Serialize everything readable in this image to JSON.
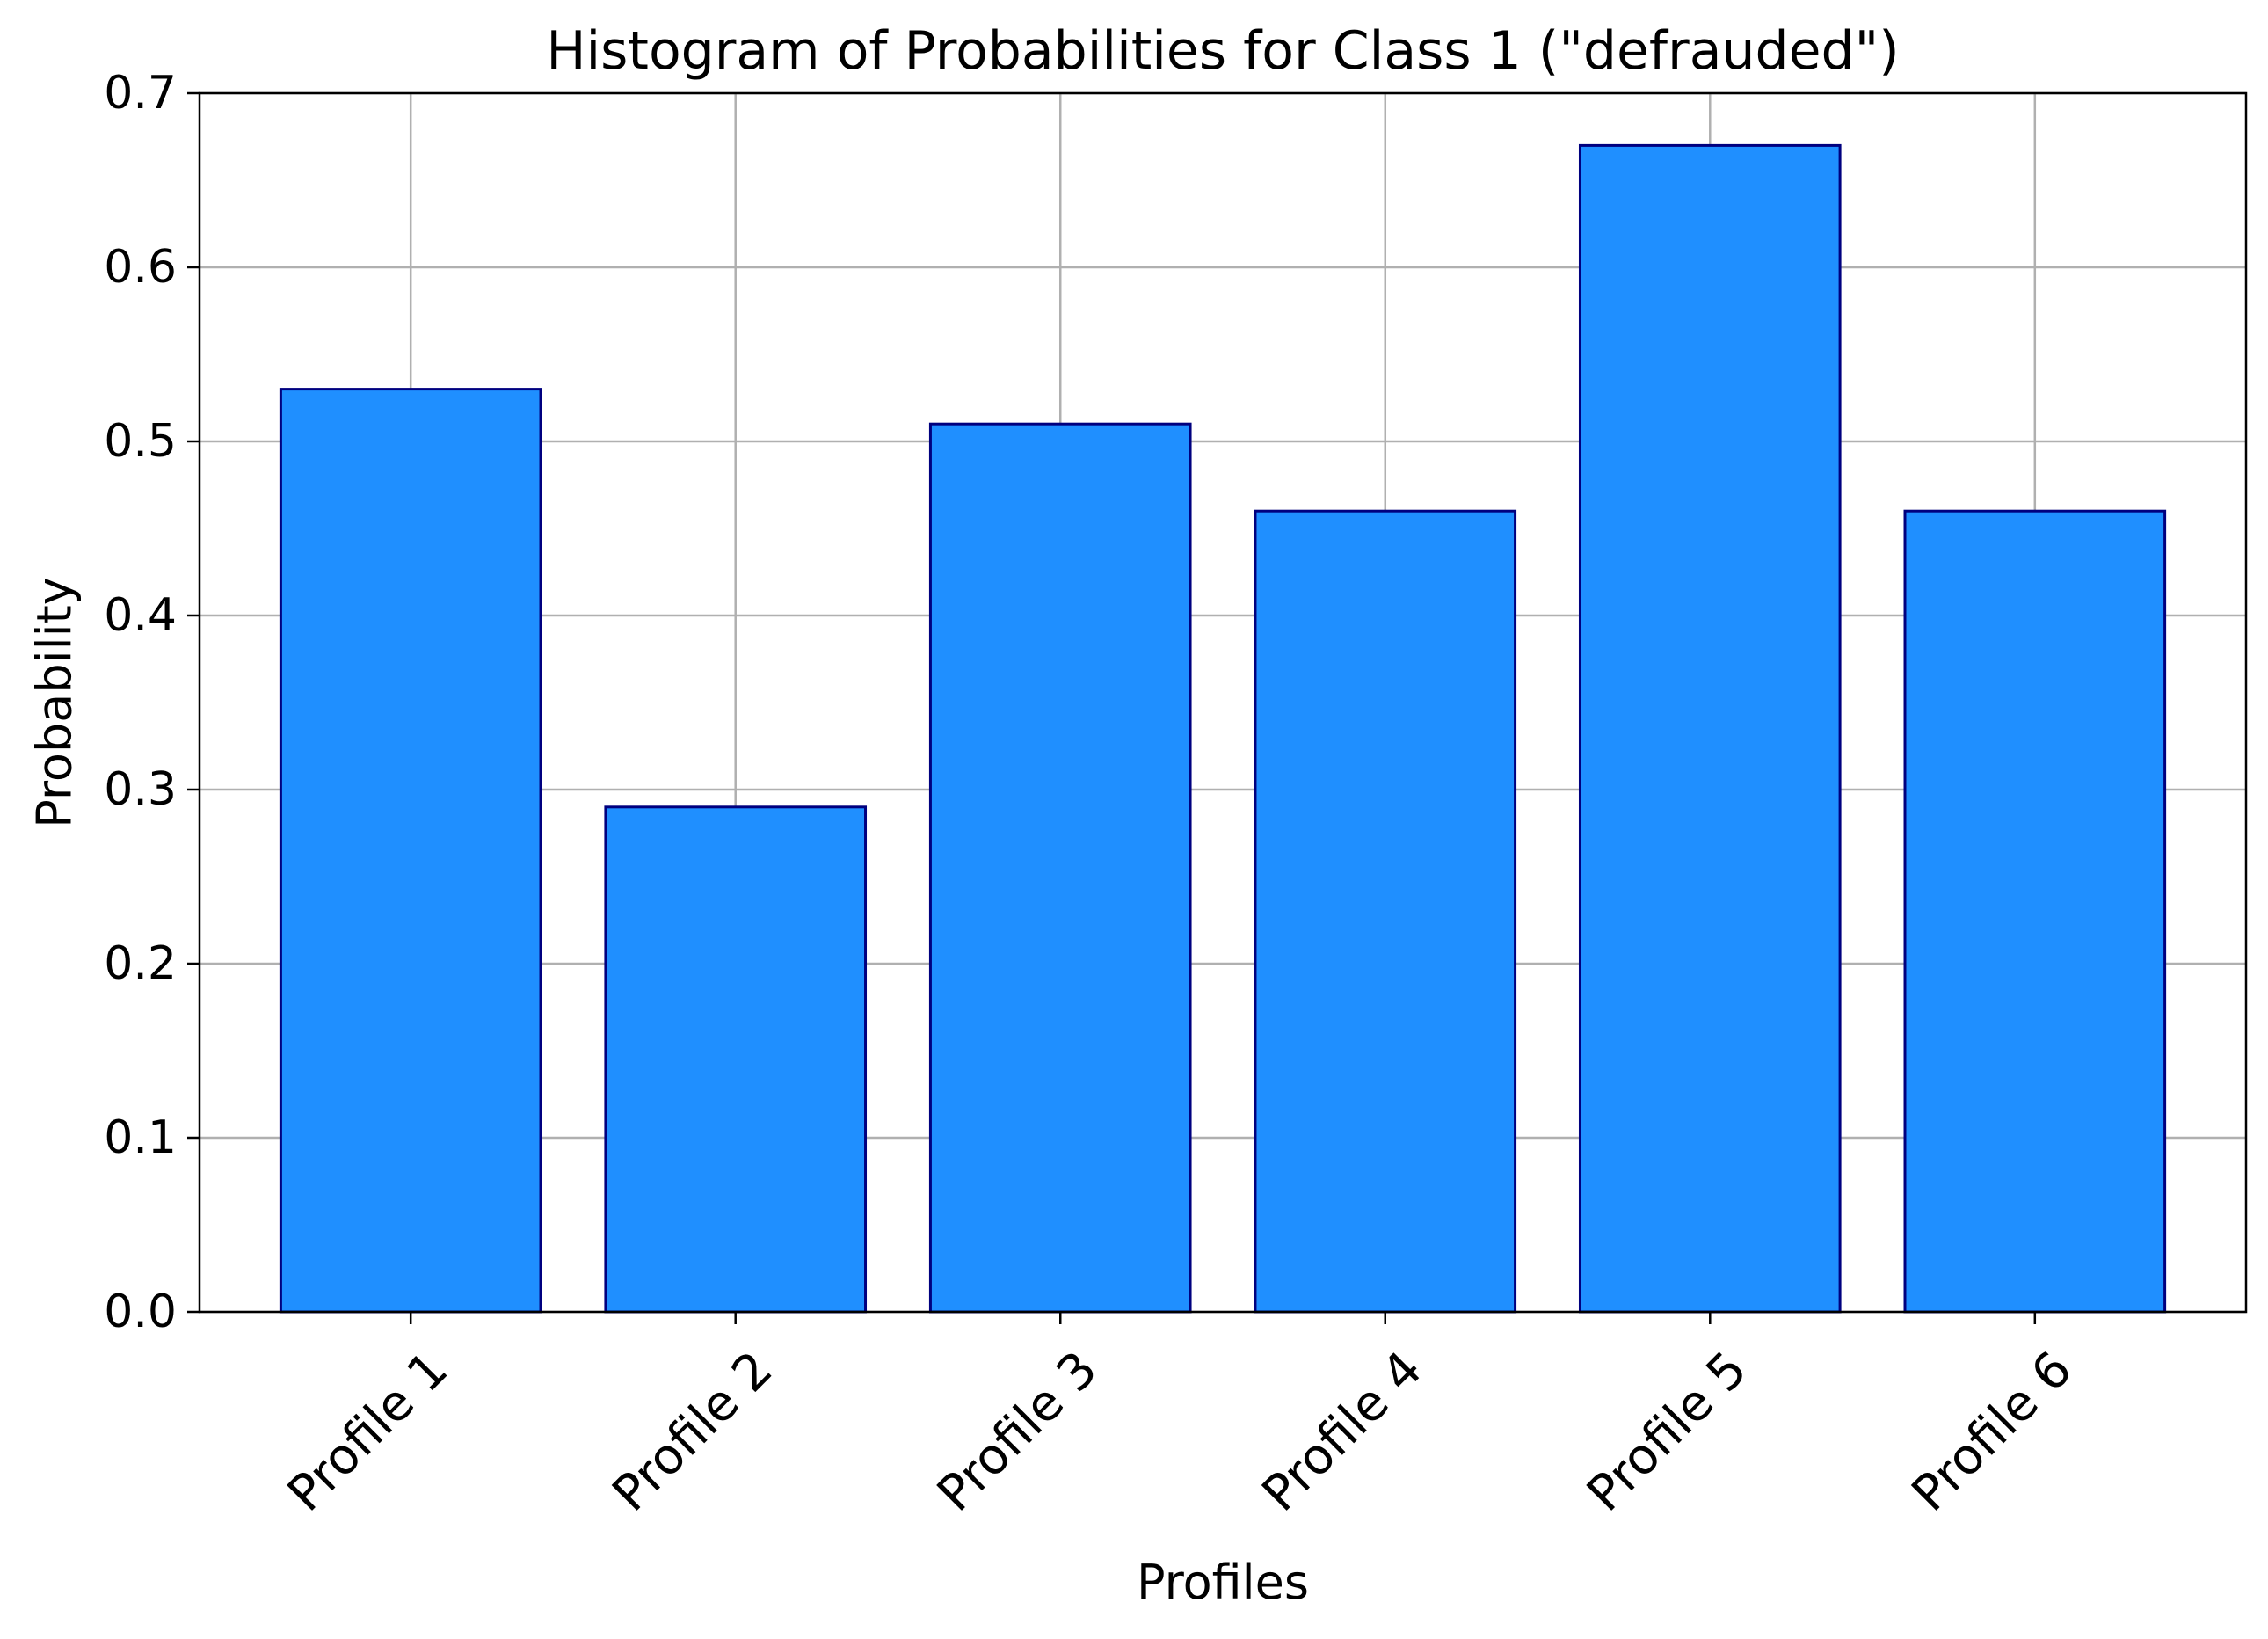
{
  "chart_data": {
    "type": "bar",
    "title": "Histogram of Probabilities for Class 1 (\"defrauded\")",
    "xlabel": "Profiles",
    "ylabel": "Probability",
    "categories": [
      "Profile 1",
      "Profile 2",
      "Profile 3",
      "Profile 4",
      "Profile 5",
      "Profile 6"
    ],
    "values": [
      0.53,
      0.29,
      0.51,
      0.46,
      0.67,
      0.46
    ],
    "ylim": [
      0,
      0.7
    ],
    "yticks": [
      "0.0",
      "0.1",
      "0.2",
      "0.3",
      "0.4",
      "0.5",
      "0.6",
      "0.7"
    ],
    "grid": true,
    "xtick_rotation_deg": 45,
    "colors": {
      "bar_fill": "#1f8fff",
      "bar_edge": "#00007f",
      "grid": "#b0b0b0",
      "axes": "#000000"
    }
  }
}
